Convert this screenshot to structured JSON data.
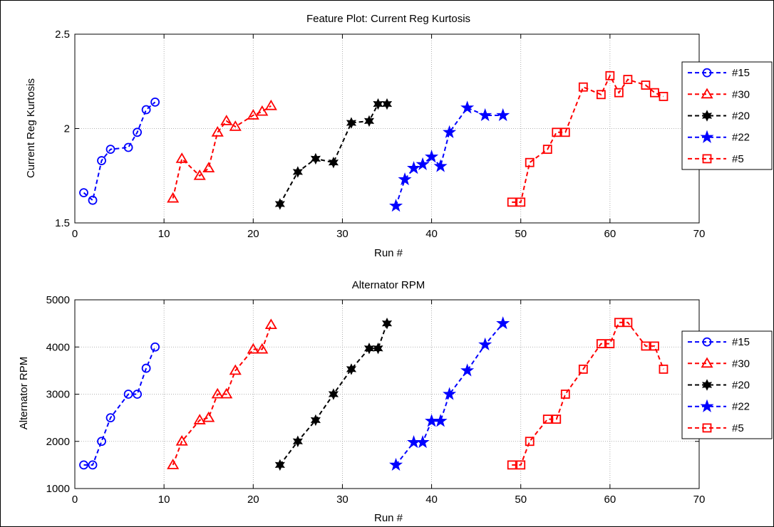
{
  "chart_data": [
    {
      "type": "line",
      "title": "Feature Plot: Current Reg Kurtosis",
      "xlabel": "Run #",
      "ylabel": "Current Reg Kurtosis",
      "xlim": [
        0,
        70
      ],
      "ylim": [
        1.5,
        2.5
      ],
      "xticks": [
        "0",
        "10",
        "20",
        "30",
        "40",
        "50",
        "60",
        "70"
      ],
      "yticks": [
        "1.5",
        "2",
        "2.5"
      ],
      "xtick_values": [
        0,
        10,
        20,
        30,
        40,
        50,
        60,
        70
      ],
      "ytick_values": [
        1.5,
        2,
        2.5
      ],
      "grid": true,
      "legend_position": "right",
      "series": [
        {
          "name": "#15",
          "color": "#0000ff",
          "marker": "circle",
          "x": [
            1,
            2,
            3,
            4,
            6,
            7,
            8,
            9
          ],
          "y": [
            1.66,
            1.62,
            1.83,
            1.89,
            1.9,
            1.98,
            2.1,
            2.14
          ]
        },
        {
          "name": "#30",
          "color": "#ff0000",
          "marker": "triangle",
          "x": [
            11,
            12,
            14,
            15,
            16,
            17,
            18,
            20,
            21,
            22
          ],
          "y": [
            1.63,
            1.84,
            1.75,
            1.79,
            1.98,
            2.04,
            2.01,
            2.07,
            2.09,
            2.12
          ]
        },
        {
          "name": "#20",
          "color": "#000000",
          "marker": "hexagram",
          "x": [
            23,
            25,
            27,
            29,
            31,
            33,
            34,
            35
          ],
          "y": [
            1.6,
            1.77,
            1.84,
            1.82,
            2.03,
            2.04,
            2.13,
            2.13
          ]
        },
        {
          "name": "#22",
          "color": "#0000ff",
          "marker": "pentagram",
          "x": [
            36,
            37,
            38,
            39,
            40,
            41,
            42,
            44,
            46,
            48
          ],
          "y": [
            1.59,
            1.73,
            1.79,
            1.81,
            1.85,
            1.8,
            1.98,
            2.11,
            2.07,
            2.07
          ]
        },
        {
          "name": "#5",
          "color": "#ff0000",
          "marker": "square",
          "x": [
            49,
            50,
            51,
            53,
            54,
            55,
            57,
            59,
            60,
            61,
            62,
            64,
            65,
            66
          ],
          "y": [
            1.61,
            1.61,
            1.82,
            1.89,
            1.98,
            1.98,
            2.22,
            2.18,
            2.28,
            2.19,
            2.26,
            2.23,
            2.19,
            2.17
          ]
        }
      ]
    },
    {
      "type": "line",
      "title": "Alternator RPM",
      "xlabel": "Run #",
      "ylabel": "Alternator RPM",
      "xlim": [
        0,
        70
      ],
      "ylim": [
        1000,
        5000
      ],
      "xticks": [
        "0",
        "10",
        "20",
        "30",
        "40",
        "50",
        "60",
        "70"
      ],
      "yticks": [
        "1000",
        "2000",
        "3000",
        "4000",
        "5000"
      ],
      "xtick_values": [
        0,
        10,
        20,
        30,
        40,
        50,
        60,
        70
      ],
      "ytick_values": [
        1000,
        2000,
        3000,
        4000,
        5000
      ],
      "grid": true,
      "legend_position": "right",
      "series": [
        {
          "name": "#15",
          "color": "#0000ff",
          "marker": "circle",
          "x": [
            1,
            2,
            3,
            4,
            6,
            7,
            8,
            9
          ],
          "y": [
            1500,
            1500,
            2000,
            2500,
            3000,
            3000,
            3550,
            4000
          ]
        },
        {
          "name": "#30",
          "color": "#ff0000",
          "marker": "triangle",
          "x": [
            11,
            12,
            14,
            15,
            16,
            17,
            18,
            20,
            21,
            22
          ],
          "y": [
            1500,
            2000,
            2450,
            2500,
            3000,
            3000,
            3500,
            3950,
            3950,
            4470
          ]
        },
        {
          "name": "#20",
          "color": "#000000",
          "marker": "hexagram",
          "x": [
            23,
            25,
            27,
            29,
            31,
            33,
            34,
            35
          ],
          "y": [
            1500,
            2000,
            2450,
            3000,
            3530,
            3970,
            3970,
            4500
          ]
        },
        {
          "name": "#22",
          "color": "#0000ff",
          "marker": "pentagram",
          "x": [
            36,
            38,
            39,
            40,
            41,
            42,
            44,
            46,
            48
          ],
          "y": [
            1500,
            1980,
            1980,
            2430,
            2430,
            3000,
            3500,
            4050,
            4500
          ]
        },
        {
          "name": "#5",
          "color": "#ff0000",
          "marker": "square",
          "x": [
            49,
            50,
            51,
            53,
            54,
            55,
            57,
            59,
            60,
            61,
            62,
            64,
            65,
            66
          ],
          "y": [
            1500,
            1500,
            2000,
            2470,
            2470,
            3000,
            3530,
            4070,
            4070,
            4520,
            4520,
            4020,
            4020,
            3530
          ]
        }
      ]
    }
  ]
}
